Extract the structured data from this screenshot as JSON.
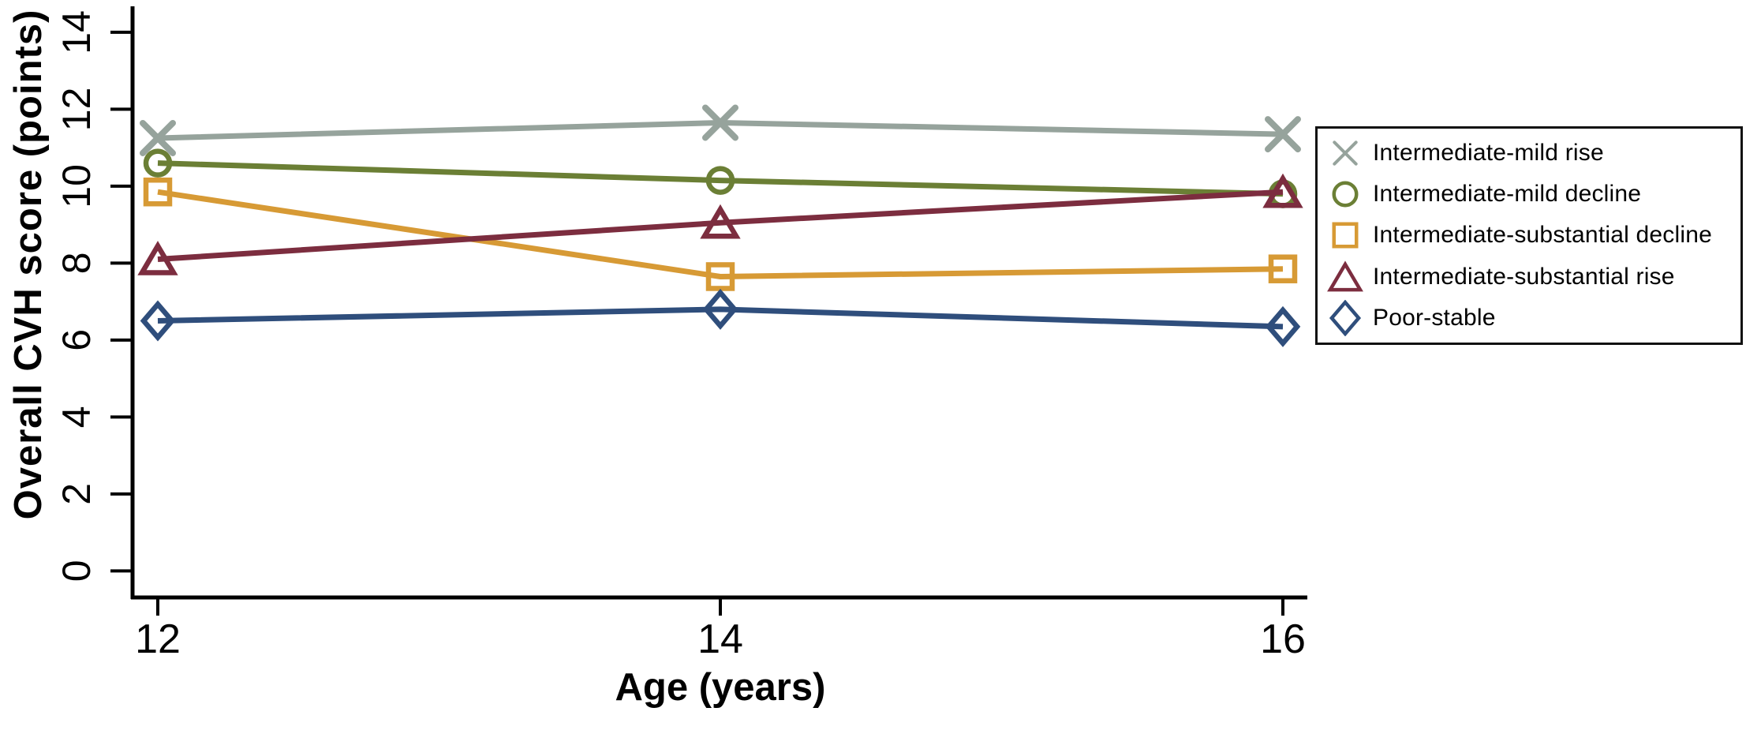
{
  "figure": {
    "kind": "published line chart of cardiovascular health trajectories",
    "background": "#FFFFFF",
    "axis_color": "#000000"
  },
  "chart_data": {
    "type": "line",
    "x": [
      12,
      14,
      16
    ],
    "x_tick_labels": [
      "12",
      "14",
      "16"
    ],
    "y_tick_labels": [
      "0",
      "2",
      "4",
      "6",
      "8",
      "10",
      "12",
      "14"
    ],
    "y_ticks": [
      0,
      2,
      4,
      6,
      8,
      10,
      12,
      14
    ],
    "xlabel": "Age (years)",
    "ylabel": "Overall CVH score (points)",
    "ylim": [
      0,
      14.7
    ],
    "grid": false,
    "legend_position": "outside-right-top",
    "legend_border": "#111111",
    "series": [
      {
        "name": "Intermediate-mild rise",
        "marker": "x",
        "color": "#96A39C",
        "values": [
          11.25,
          11.65,
          11.35
        ]
      },
      {
        "name": "Intermediate-mild decline",
        "marker": "circle",
        "color": "#6B7F35",
        "values": [
          10.6,
          10.15,
          9.8
        ]
      },
      {
        "name": "Intermediate-substantial decline",
        "marker": "square",
        "color": "#D79A35",
        "values": [
          9.85,
          7.65,
          7.85
        ]
      },
      {
        "name": "Intermediate-substantial rise",
        "marker": "triangle",
        "color": "#7C2D3F",
        "values": [
          8.1,
          9.05,
          9.85
        ]
      },
      {
        "name": "Poor-stable",
        "marker": "diamond",
        "color": "#2F4E7C",
        "values": [
          6.5,
          6.8,
          6.35
        ]
      }
    ]
  }
}
